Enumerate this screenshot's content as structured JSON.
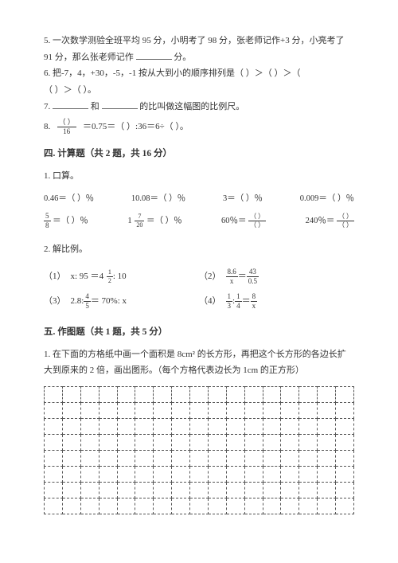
{
  "q5": {
    "prefix": "5. 一次数学测验全班平均 95 分，小明考了 98 分，张老师记作+3 分，小亮考了",
    "line2a": "91 分，那么张老师记作",
    "line2b": "分。"
  },
  "q6": {
    "prefix": "6. 把-7，4，+30，-5，-1 按从大到小的顺序排列是（",
    "gt": "）＞（",
    "line2a": "（",
    "end": "）。"
  },
  "q7": {
    "prefix": "7. ",
    "mid": "和",
    "suffix": "的比叫做这幅图的比例尺。"
  },
  "q8": {
    "prefix": "8.",
    "frac_n": "（   ）",
    "frac_d": "16",
    "eq1": "＝0.75＝（",
    "eq2": "）:36＝6÷（",
    "eq3": "）。"
  },
  "sec4": {
    "title": "四. 计算题（共 2 题，共 16 分）",
    "q1": "1. 口算。",
    "row1": {
      "a": "0.46＝（    ）％",
      "b": "10.08＝（    ）％",
      "c": "3＝（    ）％",
      "d": "0.009＝（    ）％"
    },
    "row2": {
      "a_frac_n": "5",
      "a_frac_d": "8",
      "a_tail": " ＝（    ）％",
      "b_whole": "1",
      "b_frac_n": "7",
      "b_frac_d": "20",
      "b_tail": " ＝（    ）％",
      "c_head": "60％＝",
      "c_frac_n": "（    ）",
      "c_frac_d": "（    ）",
      "d_head": "240％＝",
      "d_frac_n": "（    ）",
      "d_frac_d": "（    ）"
    },
    "q2": "2. 解比例。"
  },
  "ratios": {
    "r1": {
      "num": "（1）",
      "lhs": "x: 95 ＝ ",
      "whole": "4",
      "fn": "1",
      "fd": "2",
      "tail": ": 10"
    },
    "r2": {
      "num": "（2）",
      "ln": "8.6",
      "ld": "x",
      "eq": " ＝ ",
      "rn": "43",
      "rd": "0.5"
    },
    "r3": {
      "num": "（3）",
      "head": "2.8: ",
      "fn": "4",
      "fd": "5",
      "tail": " ＝ 70%: x"
    },
    "r4": {
      "num": "（4）",
      "an": "1",
      "ad": "3",
      "colon": ": ",
      "bn": "1",
      "bd": "4",
      "eq": " ＝ ",
      "cn": "8",
      "cd": "x"
    }
  },
  "sec5": {
    "title": "五. 作图题（共 1 题，共 5 分）",
    "q1a": "1. 在下面的方格纸中画一个面积是 8cm² 的长方形，再把这个长方形的各边长扩",
    "q1b": "大到原来的 2 倍，画出图形。（每个方格代表边长为 1cm 的正方形）"
  },
  "grid": {
    "rows": 8,
    "cols": 17
  }
}
